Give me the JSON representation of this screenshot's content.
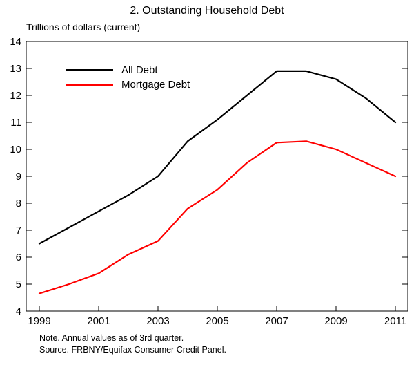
{
  "chart_data": {
    "type": "line",
    "title": "2. Outstanding Household Debt",
    "units_label": "Trillions of dollars (current)",
    "x": [
      1999,
      2000,
      2001,
      2002,
      2003,
      2004,
      2005,
      2006,
      2007,
      2008,
      2009,
      2010,
      2011
    ],
    "xticks": [
      1999,
      2001,
      2003,
      2005,
      2007,
      2009,
      2011
    ],
    "ylim": [
      4,
      14
    ],
    "ytick_step": 1,
    "grid": false,
    "legend_position": "top-left-inside",
    "series": [
      {
        "name": "All Debt",
        "color": "#000000",
        "values": [
          6.5,
          7.1,
          7.7,
          8.3,
          9.0,
          10.3,
          11.1,
          12.0,
          12.9,
          12.9,
          12.6,
          11.9,
          11.0
        ]
      },
      {
        "name": "Mortgage Debt",
        "color": "#ff0000",
        "values": [
          4.65,
          5.0,
          5.4,
          6.1,
          6.6,
          7.8,
          8.5,
          9.5,
          10.25,
          10.3,
          10.0,
          9.5,
          9.0
        ]
      }
    ],
    "notes": [
      "Note. Annual values as of 3rd quarter.",
      "Source. FRBNY/Equifax Consumer Credit Panel."
    ]
  }
}
